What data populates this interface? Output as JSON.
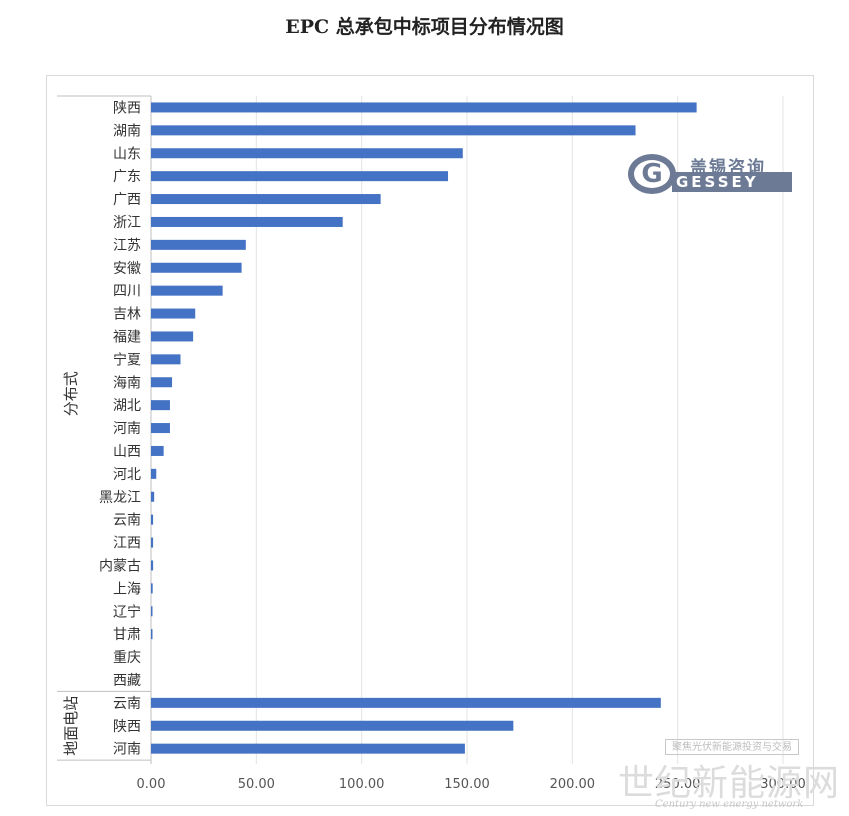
{
  "chart_data": {
    "type": "bar",
    "orientation": "horizontal",
    "title": "EPC 总承包中标项目分布情况图",
    "xlim": [
      0,
      300
    ],
    "xticks": [
      "0.00",
      "50.00",
      "100.00",
      "150.00",
      "200.00",
      "250.00",
      "300.00"
    ],
    "grid": true,
    "bar_color": "#4472c4",
    "groups": [
      {
        "name": "分布式",
        "categories": [
          "陕西",
          "湖南",
          "山东",
          "广东",
          "广西",
          "浙江",
          "江苏",
          "安徽",
          "四川",
          "吉林",
          "福建",
          "宁夏",
          "海南",
          "湖北",
          "河南",
          "山西",
          "河北",
          "黑龙江",
          "云南",
          "江西",
          "内蒙古",
          "上海",
          "辽宁",
          "甘肃",
          "重庆",
          "西藏"
        ],
        "values": [
          259,
          230,
          148,
          141,
          109,
          91,
          45,
          43,
          34,
          21,
          20,
          14,
          10,
          9,
          9,
          6,
          2.5,
          1.5,
          1,
          1,
          1,
          0.8,
          0.6,
          0.5,
          0,
          0
        ]
      },
      {
        "name": "地面电站",
        "categories": [
          "云南",
          "陕西",
          "河南"
        ],
        "values": [
          242,
          172,
          149
        ]
      }
    ]
  },
  "watermarks": {
    "logo_cn": "盖锡咨询",
    "logo_en": "GESSEY",
    "logo_g": "G",
    "box_text": "聚焦光伏新能源投资与交易",
    "site_cn": "世纪新能源网",
    "site_en": "Century new energy network"
  }
}
